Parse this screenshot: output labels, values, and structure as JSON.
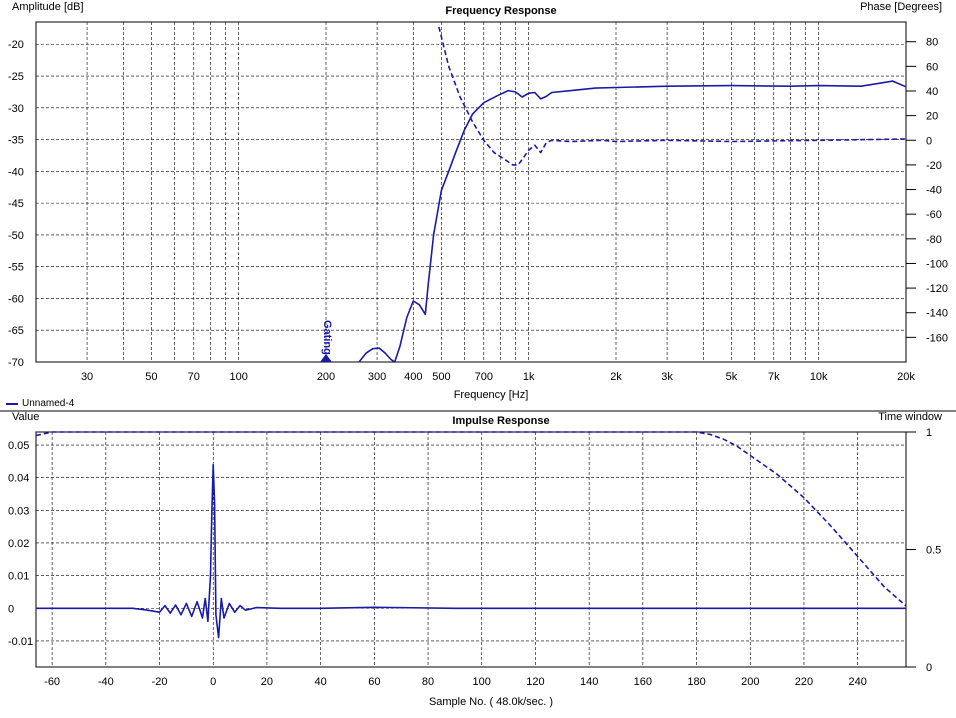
{
  "colors": {
    "trace": "#1a1aa6",
    "grid": "#000000",
    "divider": "#000000"
  },
  "legend": {
    "label": "Unnamed-4"
  },
  "chart_data": [
    {
      "type": "line",
      "title": "Frequency Response",
      "ylabel": "Amplitude [dB]",
      "y2label": "Phase [Degrees]",
      "xlabel": "Frequency [Hz]",
      "xscale": "log",
      "xlim": [
        20,
        20000
      ],
      "ylim": [
        -70,
        -16.5
      ],
      "y2lim": [
        -180,
        96
      ],
      "grid": true,
      "x_ticks": [
        {
          "v": 30,
          "t": "30"
        },
        {
          "v": 50,
          "t": "50"
        },
        {
          "v": 70,
          "t": "70"
        },
        {
          "v": 100,
          "t": "100"
        },
        {
          "v": 200,
          "t": "200"
        },
        {
          "v": 300,
          "t": "300"
        },
        {
          "v": 400,
          "t": "400"
        },
        {
          "v": 500,
          "t": "500"
        },
        {
          "v": 700,
          "t": "700"
        },
        {
          "v": 1000,
          "t": "1k"
        },
        {
          "v": 2000,
          "t": "2k"
        },
        {
          "v": 3000,
          "t": "3k"
        },
        {
          "v": 5000,
          "t": "5k"
        },
        {
          "v": 7000,
          "t": "7k"
        },
        {
          "v": 10000,
          "t": "10k"
        },
        {
          "v": 20000,
          "t": "20k"
        }
      ],
      "x_gridlines": [
        30,
        40,
        50,
        60,
        70,
        80,
        90,
        100,
        200,
        300,
        400,
        500,
        600,
        700,
        800,
        900,
        1000,
        2000,
        3000,
        4000,
        5000,
        6000,
        7000,
        8000,
        9000,
        10000,
        20000
      ],
      "y_ticks": [
        -20,
        -25,
        -30,
        -35,
        -40,
        -45,
        -50,
        -55,
        -60,
        -65,
        -70
      ],
      "y2_ticks": [
        80,
        60,
        40,
        20,
        0,
        -20,
        -40,
        -60,
        -80,
        -100,
        -120,
        -140,
        -160
      ],
      "marker": {
        "x": 200,
        "text": "Gating"
      },
      "series": [
        {
          "style": "solid",
          "axis": "left",
          "points": [
            [
              260,
              -70
            ],
            [
              275,
              -68.6
            ],
            [
              290,
              -67.9
            ],
            [
              305,
              -67.8
            ],
            [
              320,
              -68.6
            ],
            [
              335,
              -69.6
            ],
            [
              345,
              -70
            ],
            [
              360,
              -67.5
            ],
            [
              380,
              -63
            ],
            [
              400,
              -60.4
            ],
            [
              420,
              -61
            ],
            [
              440,
              -62.5
            ],
            [
              450,
              -58
            ],
            [
              470,
              -50
            ],
            [
              500,
              -43
            ],
            [
              530,
              -40
            ],
            [
              560,
              -37
            ],
            [
              600,
              -33.5
            ],
            [
              640,
              -31
            ],
            [
              700,
              -29.2
            ],
            [
              780,
              -28.1
            ],
            [
              850,
              -27.3
            ],
            [
              900,
              -27.5
            ],
            [
              950,
              -28.3
            ],
            [
              1000,
              -27.7
            ],
            [
              1050,
              -27.6
            ],
            [
              1100,
              -28.6
            ],
            [
              1150,
              -28.2
            ],
            [
              1200,
              -27.6
            ],
            [
              1400,
              -27.3
            ],
            [
              1700,
              -26.9
            ],
            [
              2000,
              -26.8
            ],
            [
              3000,
              -26.6
            ],
            [
              5000,
              -26.5
            ],
            [
              8000,
              -26.6
            ],
            [
              10000,
              -26.5
            ],
            [
              14000,
              -26.6
            ],
            [
              18000,
              -25.8
            ],
            [
              20000,
              -26.7
            ]
          ]
        },
        {
          "style": "dashed",
          "axis": "right",
          "points": [
            [
              490,
              92
            ],
            [
              530,
              60
            ],
            [
              580,
              35
            ],
            [
              640,
              15
            ],
            [
              700,
              0
            ],
            [
              760,
              -10
            ],
            [
              820,
              -15
            ],
            [
              880,
              -20
            ],
            [
              920,
              -20
            ],
            [
              960,
              -14
            ],
            [
              1000,
              -8
            ],
            [
              1050,
              -4
            ],
            [
              1100,
              -10
            ],
            [
              1150,
              -2
            ],
            [
              1200,
              0
            ],
            [
              1400,
              -1
            ],
            [
              1800,
              0
            ],
            [
              2000,
              -1
            ],
            [
              3000,
              0
            ],
            [
              5000,
              -1
            ],
            [
              10000,
              0
            ],
            [
              20000,
              1
            ]
          ]
        }
      ]
    },
    {
      "type": "line",
      "title": "Impulse Response",
      "ylabel": "Value",
      "y2label": "Time window",
      "xlabel": "Sample No. ( 48.0k/sec. )",
      "xlim": [
        -66,
        258
      ],
      "ylim": [
        -0.018,
        0.054
      ],
      "y2lim": [
        0,
        1
      ],
      "grid": true,
      "x_ticks": [
        -60,
        -40,
        -20,
        0,
        20,
        40,
        60,
        80,
        100,
        120,
        140,
        160,
        180,
        200,
        220,
        240
      ],
      "y_ticks": [
        {
          "v": 0.05,
          "t": "0.05"
        },
        {
          "v": 0.04,
          "t": "0.04"
        },
        {
          "v": 0.03,
          "t": "0.03"
        },
        {
          "v": 0.02,
          "t": "0.02"
        },
        {
          "v": 0.01,
          "t": "0.01"
        },
        {
          "v": 0,
          "t": "0"
        },
        {
          "v": -0.01,
          "t": "-0.01"
        }
      ],
      "y2_ticks": [
        {
          "v": 1,
          "t": "1"
        },
        {
          "v": 0.5,
          "t": "0.5"
        },
        {
          "v": 0,
          "t": "0"
        }
      ],
      "series": [
        {
          "style": "solid",
          "axis": "left",
          "points": [
            [
              -66,
              0
            ],
            [
              -30,
              0
            ],
            [
              -25,
              -0.0005
            ],
            [
              -20,
              -0.0012
            ],
            [
              -18,
              0.0008
            ],
            [
              -16,
              -0.0015
            ],
            [
              -14,
              0.001
            ],
            [
              -12,
              -0.002
            ],
            [
              -10,
              0.0015
            ],
            [
              -8,
              -0.0025
            ],
            [
              -6,
              0.002
            ],
            [
              -4,
              -0.003
            ],
            [
              -3,
              0.003
            ],
            [
              -2,
              -0.004
            ],
            [
              -1,
              0.01
            ],
            [
              -0.5,
              0.03
            ],
            [
              0,
              0.044
            ],
            [
              0.5,
              0.032
            ],
            [
              1,
              -0.002
            ],
            [
              2,
              -0.009
            ],
            [
              3,
              0.003
            ],
            [
              4,
              -0.003
            ],
            [
              6,
              0.0015
            ],
            [
              8,
              -0.0012
            ],
            [
              10,
              0.0008
            ],
            [
              12,
              -0.0006
            ],
            [
              16,
              0.0002
            ],
            [
              25,
              0
            ],
            [
              40,
              0
            ],
            [
              60,
              0.0003
            ],
            [
              90,
              0
            ],
            [
              258,
              0
            ]
          ]
        },
        {
          "style": "dashed",
          "axis": "right",
          "points": [
            [
              -66,
              0.985
            ],
            [
              -60,
              1
            ],
            [
              180,
              1
            ],
            [
              185,
              0.99
            ],
            [
              190,
              0.97
            ],
            [
              195,
              0.94
            ],
            [
              200,
              0.9
            ],
            [
              210,
              0.82
            ],
            [
              220,
              0.72
            ],
            [
              230,
              0.6
            ],
            [
              240,
              0.47
            ],
            [
              250,
              0.34
            ],
            [
              258,
              0.26
            ]
          ]
        }
      ]
    }
  ]
}
